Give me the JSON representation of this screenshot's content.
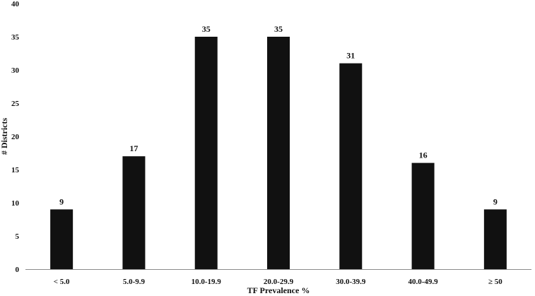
{
  "chart_data": {
    "type": "bar",
    "categories": [
      "< 5.0",
      "5.0-9.9",
      "10.0-19.9",
      "20.0-29.9",
      "30.0-39.9",
      "40.0-49.9",
      "≥ 50"
    ],
    "values": [
      9,
      17,
      35,
      35,
      31,
      16,
      9
    ],
    "xlabel": "TF Prevalence %",
    "ylabel": "# Districts",
    "ylim": [
      0,
      40
    ],
    "yticks": [
      0,
      5,
      10,
      15,
      20,
      25,
      30,
      35,
      40
    ],
    "grid": false,
    "legend": "none",
    "data_labels": true,
    "bar_color": "#111111"
  }
}
